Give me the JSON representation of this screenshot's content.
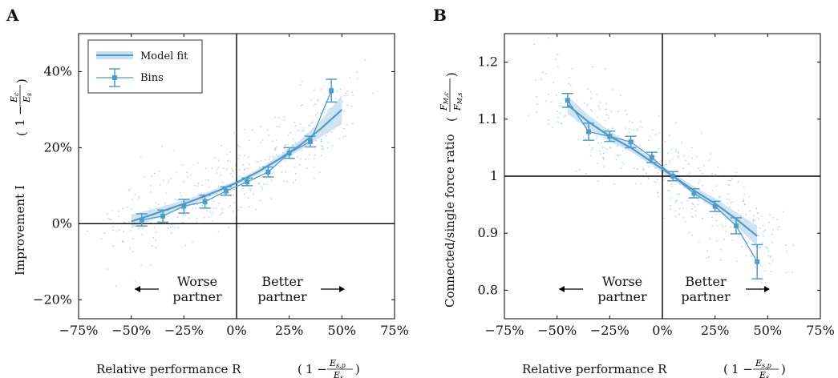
{
  "chart_data": [
    {
      "panel": "A",
      "type": "line",
      "xlabel": "Relative performance R",
      "ylabel": "Improvement I",
      "xlim": [
        -75,
        75
      ],
      "ylim": [
        -25,
        50
      ],
      "xticks": [
        -75,
        -50,
        -25,
        0,
        25,
        50,
        75
      ],
      "xtick_labels": [
        "−75%",
        "−50%",
        "−25%",
        "0%",
        "25%",
        "50%",
        "75%"
      ],
      "yticks": [
        -20,
        0,
        20,
        40
      ],
      "ytick_labels": [
        "−20%",
        "0%",
        "20%",
        "40%"
      ],
      "reference_lines": {
        "x": 0,
        "y": 0
      },
      "legend": {
        "position": "top-left",
        "entries": [
          "Model fit",
          "Bins"
        ]
      },
      "annotations": {
        "left": [
          "Worse",
          "partner"
        ],
        "right": [
          "Better",
          "partner"
        ]
      },
      "series": [
        {
          "name": "Model fit",
          "x": [
            -50,
            -40,
            -30,
            -20,
            -10,
            0,
            10,
            20,
            30,
            40,
            50
          ],
          "y": [
            0.6,
            2.4,
            4.3,
            6.2,
            8.4,
            10.8,
            13.6,
            16.9,
            20.6,
            25.0,
            30.0
          ],
          "band_halfwidth": [
            1.8,
            1.4,
            1.1,
            0.9,
            0.7,
            0.6,
            0.7,
            0.9,
            1.3,
            2.2,
            3.8
          ]
        },
        {
          "name": "Bins",
          "x": [
            -45,
            -35,
            -25,
            -15,
            -5,
            5,
            15,
            25,
            35,
            45
          ],
          "y": [
            1.0,
            2.0,
            4.6,
            5.8,
            8.6,
            11.0,
            13.6,
            18.6,
            21.6,
            35.0
          ],
          "err": [
            1.6,
            1.6,
            1.8,
            1.7,
            1.1,
            1.0,
            1.3,
            1.4,
            1.4,
            3.0
          ]
        }
      ]
    },
    {
      "panel": "B",
      "type": "line",
      "xlabel": "Relative performance R",
      "ylabel": "Connected/single force ratio",
      "xlim": [
        -75,
        75
      ],
      "ylim": [
        0.75,
        1.25
      ],
      "xticks": [
        -75,
        -50,
        -25,
        0,
        25,
        50,
        75
      ],
      "xtick_labels": [
        "−75%",
        "−50%",
        "−25%",
        "0%",
        "25%",
        "50%",
        "75%"
      ],
      "yticks": [
        0.8,
        0.9,
        1.0,
        1.1,
        1.2
      ],
      "ytick_labels": [
        "0.8",
        "0.9",
        "1",
        "1.1",
        "1.2"
      ],
      "reference_lines": {
        "x": 0,
        "y": 1.0
      },
      "annotations": {
        "left": [
          "Worse",
          "partner"
        ],
        "right": [
          "Better",
          "partner"
        ]
      },
      "series": [
        {
          "name": "Model fit",
          "x": [
            -45,
            -35,
            -25,
            -15,
            -5,
            5,
            15,
            25,
            35,
            45
          ],
          "y": [
            1.125,
            1.095,
            1.07,
            1.05,
            1.025,
            1.0,
            0.975,
            0.952,
            0.925,
            0.895
          ],
          "band_halfwidth": [
            0.016,
            0.012,
            0.009,
            0.007,
            0.006,
            0.006,
            0.007,
            0.009,
            0.012,
            0.018
          ]
        },
        {
          "name": "Bins",
          "x": [
            -45,
            -35,
            -25,
            -15,
            -5,
            5,
            15,
            25,
            35,
            45
          ],
          "y": [
            1.133,
            1.078,
            1.07,
            1.06,
            1.033,
            1.0,
            0.97,
            0.947,
            0.913,
            0.85
          ],
          "err": [
            0.012,
            0.015,
            0.009,
            0.01,
            0.009,
            0.008,
            0.008,
            0.009,
            0.014,
            0.03
          ]
        }
      ]
    }
  ],
  "style": {
    "accent": "#4f9bc8",
    "band": "#c8dff0",
    "scatter": "#9cc3e0",
    "axis": "#000000"
  }
}
